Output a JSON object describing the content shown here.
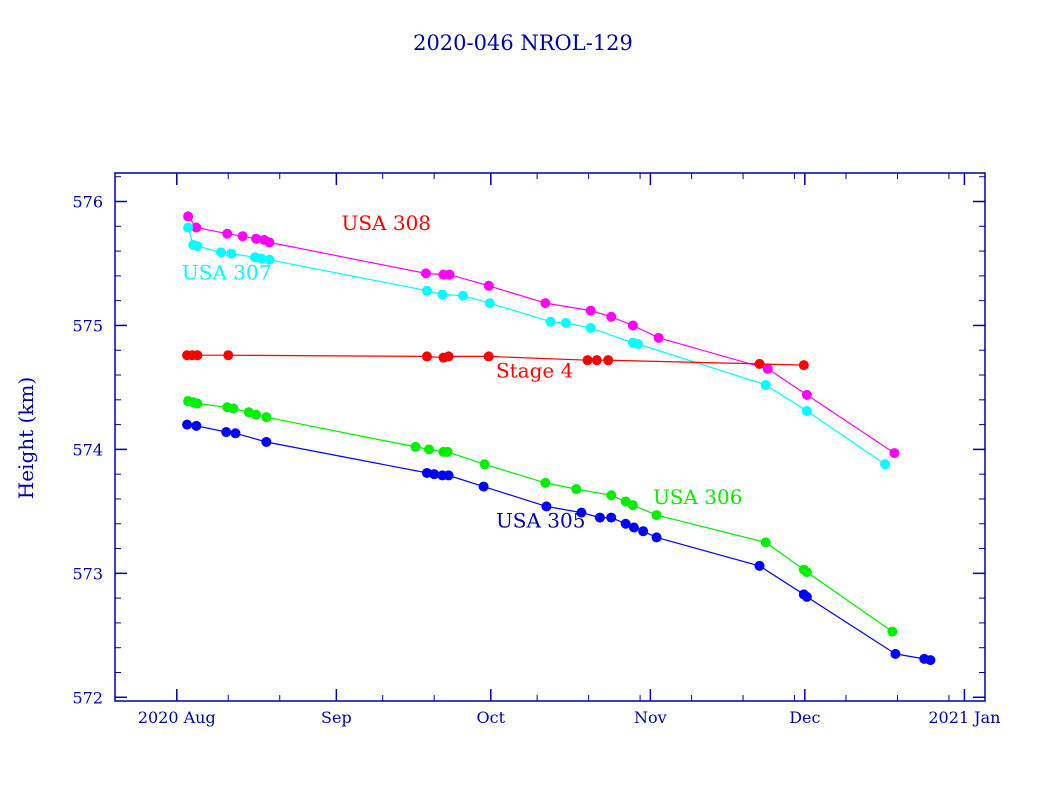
{
  "chart_data": {
    "type": "line",
    "title": "2020-046 NROL-129",
    "xlabel": "",
    "ylabel": "Height (km)",
    "x_unit": "days since 2020-08-01",
    "xlim": [
      -12,
      157
    ],
    "ylim": [
      571.97,
      576.23
    ],
    "y_ticks": [
      572,
      573,
      574,
      575,
      576
    ],
    "x_ticks": [
      {
        "value": 0,
        "label": "2020 Aug"
      },
      {
        "value": 31,
        "label": "Sep"
      },
      {
        "value": 61,
        "label": "Oct"
      },
      {
        "value": 92,
        "label": "Nov"
      },
      {
        "value": 122,
        "label": "Dec"
      },
      {
        "value": 153,
        "label": "2021 Jan"
      }
    ],
    "colors": {
      "axis": "#0000aa",
      "usa_305": "#0000ff",
      "usa_306": "#00ee00",
      "usa_307": "#00ffff",
      "usa_308": "#ff00ff",
      "stage_4": "#ff0000"
    },
    "series": [
      {
        "name": "USA 308",
        "label": "USA 308",
        "label_color": "#ff0000",
        "label_at": [
          32,
          575.77
        ],
        "color": "#ff00ff",
        "points": [
          [
            2.2,
            575.88
          ],
          [
            3.8,
            575.79
          ],
          [
            9.8,
            575.74
          ],
          [
            12.8,
            575.72
          ],
          [
            15.4,
            575.7
          ],
          [
            17.0,
            575.69
          ],
          [
            18.0,
            575.67
          ],
          [
            48.4,
            575.42
          ],
          [
            51.8,
            575.41
          ],
          [
            53.0,
            575.41
          ],
          [
            60.6,
            575.32
          ],
          [
            71.6,
            575.18
          ],
          [
            80.4,
            575.12
          ],
          [
            84.4,
            575.07
          ],
          [
            88.6,
            575.0
          ],
          [
            93.6,
            574.9
          ],
          [
            114.8,
            574.65
          ],
          [
            122.4,
            574.44
          ],
          [
            139.4,
            573.97
          ]
        ]
      },
      {
        "name": "USA 307",
        "label": "USA 307",
        "label_color": "#00ffff",
        "label_at": [
          1,
          575.37
        ],
        "color": "#00ffff",
        "points": [
          [
            2.2,
            575.79
          ],
          [
            3.2,
            575.65
          ],
          [
            4.0,
            575.64
          ],
          [
            8.6,
            575.59
          ],
          [
            10.6,
            575.58
          ],
          [
            15.2,
            575.55
          ],
          [
            16.4,
            575.54
          ],
          [
            18.0,
            575.53
          ],
          [
            48.6,
            575.28
          ],
          [
            51.6,
            575.25
          ],
          [
            55.6,
            575.24
          ],
          [
            60.8,
            575.18
          ],
          [
            72.6,
            575.03
          ],
          [
            75.6,
            575.02
          ],
          [
            80.4,
            574.98
          ],
          [
            88.6,
            574.86
          ],
          [
            89.6,
            574.85
          ],
          [
            114.4,
            574.52
          ],
          [
            122.4,
            574.31
          ],
          [
            137.6,
            573.88
          ]
        ]
      },
      {
        "name": "Stage 4",
        "label": "Stage 4",
        "label_color": "#ff0000",
        "label_at": [
          62,
          574.58
        ],
        "color": "#ff0000",
        "points": [
          [
            2.0,
            574.76
          ],
          [
            3.0,
            574.76
          ],
          [
            4.0,
            574.76
          ],
          [
            10.0,
            574.76
          ],
          [
            48.6,
            574.75
          ],
          [
            51.8,
            574.74
          ],
          [
            52.8,
            574.75
          ],
          [
            60.6,
            574.75
          ],
          [
            79.8,
            574.72
          ],
          [
            81.6,
            574.72
          ],
          [
            83.8,
            574.72
          ],
          [
            113.2,
            574.69
          ],
          [
            121.8,
            574.68
          ]
        ]
      },
      {
        "name": "USA 306",
        "label": "USA 306",
        "label_color": "#00ee00",
        "label_at": [
          92.5,
          573.56
        ],
        "color": "#00ee00",
        "points": [
          [
            2.2,
            574.39
          ],
          [
            3.2,
            574.38
          ],
          [
            4.0,
            574.37
          ],
          [
            9.8,
            574.34
          ],
          [
            11.0,
            574.33
          ],
          [
            14.0,
            574.3
          ],
          [
            15.4,
            574.28
          ],
          [
            17.4,
            574.26
          ],
          [
            46.4,
            574.02
          ],
          [
            49.0,
            574.0
          ],
          [
            51.8,
            573.98
          ],
          [
            52.6,
            573.98
          ],
          [
            59.8,
            573.88
          ],
          [
            71.6,
            573.73
          ],
          [
            77.6,
            573.68
          ],
          [
            84.4,
            573.63
          ],
          [
            87.2,
            573.58
          ],
          [
            88.6,
            573.55
          ],
          [
            93.2,
            573.47
          ],
          [
            114.4,
            573.25
          ],
          [
            121.8,
            573.03
          ],
          [
            122.4,
            573.01
          ],
          [
            139.0,
            572.53
          ]
        ]
      },
      {
        "name": "USA 305",
        "label": "USA 305",
        "label_color": "#0000aa",
        "label_at": [
          62,
          573.37
        ],
        "color": "#0000ff",
        "points": [
          [
            2.0,
            574.2
          ],
          [
            3.8,
            574.19
          ],
          [
            9.6,
            574.14
          ],
          [
            11.4,
            574.13
          ],
          [
            17.4,
            574.06
          ],
          [
            48.6,
            573.81
          ],
          [
            50.0,
            573.8
          ],
          [
            51.6,
            573.79
          ],
          [
            52.8,
            573.79
          ],
          [
            59.6,
            573.7
          ],
          [
            71.8,
            573.54
          ],
          [
            78.6,
            573.49
          ],
          [
            82.2,
            573.45
          ],
          [
            84.4,
            573.45
          ],
          [
            87.2,
            573.4
          ],
          [
            88.8,
            573.37
          ],
          [
            90.6,
            573.34
          ],
          [
            93.2,
            573.29
          ],
          [
            113.2,
            573.06
          ],
          [
            121.8,
            572.83
          ],
          [
            122.4,
            572.81
          ],
          [
            139.6,
            572.35
          ],
          [
            145.2,
            572.31
          ],
          [
            146.4,
            572.3
          ]
        ]
      }
    ]
  }
}
